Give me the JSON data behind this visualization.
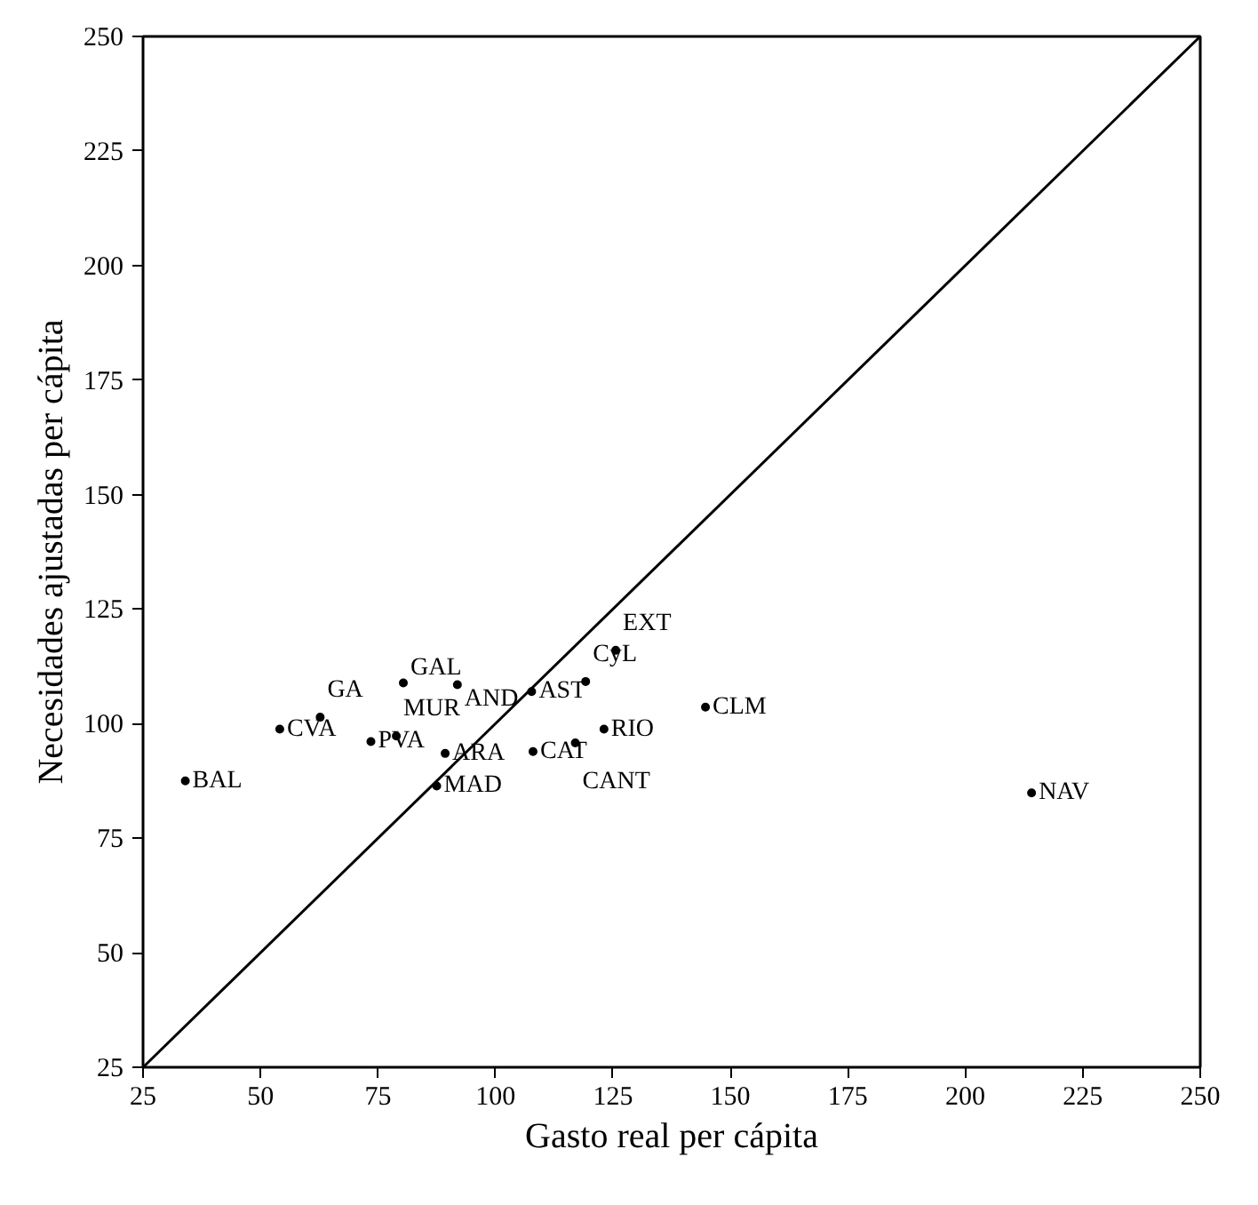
{
  "chart_data": {
    "type": "scatter",
    "xlabel": "Gasto real per cápita",
    "ylabel": "Necesidades ajustadas per cápita",
    "xlim": [
      25,
      250
    ],
    "ylim": [
      25,
      250
    ],
    "xticks": [
      25,
      50,
      75,
      100,
      125,
      150,
      175,
      200,
      225,
      250
    ],
    "yticks": [
      25,
      50,
      75,
      100,
      125,
      150,
      175,
      200,
      225,
      250
    ],
    "grid": false,
    "series": [
      {
        "type": "line",
        "color": "#000000",
        "x": [
          25,
          250
        ],
        "values": [
          25,
          250
        ]
      },
      {
        "color": "#000000",
        "marker": "circle",
        "x": [
          34,
          54.1,
          62.7,
          73.5,
          78.9,
          80.4,
          89.3,
          87.5,
          91.9,
          107.7,
          119.2,
          125.6,
          108,
          117,
          123.1,
          144.7,
          214.1
        ],
        "values": [
          87.5,
          98.8,
          101.4,
          96.1,
          97.3,
          108.9,
          93.5,
          86.4,
          108.5,
          107,
          109.2,
          116,
          93.9,
          95.8,
          98.8,
          103.6,
          84.9
        ],
        "value_labels": [
          "BAL",
          "CVA",
          "GA",
          "PVA",
          "MUR",
          "GAL",
          "ARA",
          "MAD",
          "AND",
          "AST",
          "CyL",
          "EXT",
          "CAT",
          "CANT",
          "RIO",
          "CLM",
          "NAV"
        ]
      }
    ]
  }
}
